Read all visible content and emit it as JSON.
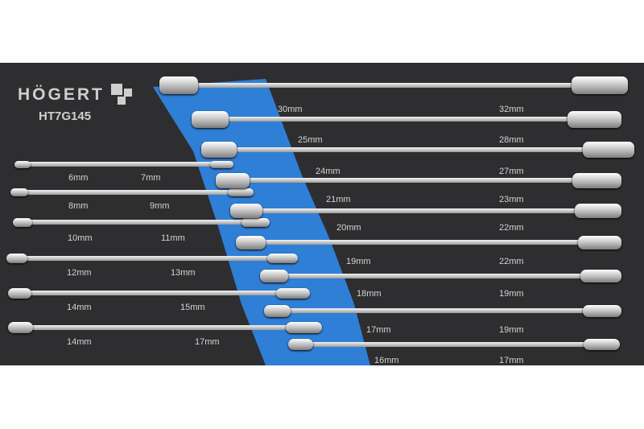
{
  "brand": {
    "logo_text": "HÖGERT",
    "model": "HT7G145"
  },
  "colors": {
    "tray": "#2e2e30",
    "accent_band": "#2f7fd6",
    "steel": "#d9d9d9",
    "label": "#d4d4d4"
  },
  "left_wrenches": [
    {
      "sizes": [
        "6mm",
        "7mm"
      ]
    },
    {
      "sizes": [
        "8mm",
        "9mm"
      ]
    },
    {
      "sizes": [
        "10mm",
        "11mm"
      ]
    },
    {
      "sizes": [
        "12mm",
        "13mm"
      ]
    },
    {
      "sizes": [
        "14mm",
        "15mm"
      ]
    },
    {
      "sizes": [
        "14mm",
        "17mm"
      ]
    }
  ],
  "right_wrenches": [
    {
      "sizes": [
        "30mm",
        "32mm"
      ]
    },
    {
      "sizes": [
        "25mm",
        "28mm"
      ]
    },
    {
      "sizes": [
        "24mm",
        "27mm"
      ]
    },
    {
      "sizes": [
        "21mm",
        "23mm"
      ]
    },
    {
      "sizes": [
        "20mm",
        "22mm"
      ]
    },
    {
      "sizes": [
        "19mm",
        "22mm"
      ]
    },
    {
      "sizes": [
        "18mm",
        "19mm"
      ]
    },
    {
      "sizes": [
        "17mm",
        "19mm"
      ]
    },
    {
      "sizes": [
        "16mm",
        "17mm"
      ]
    }
  ]
}
